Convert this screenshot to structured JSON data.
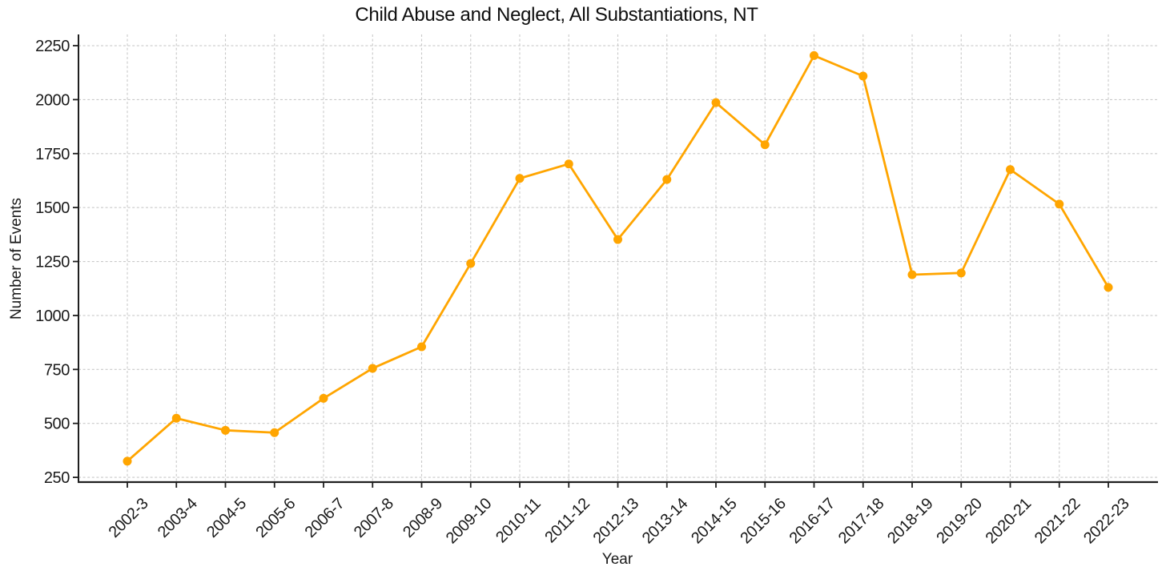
{
  "chart_data": {
    "type": "line",
    "title": "Child Abuse and Neglect, All Substantiations, NT",
    "xlabel": "Year",
    "ylabel": "Number of Events",
    "categories": [
      "2002-3",
      "2003-4",
      "2004-5",
      "2005-6",
      "2006-7",
      "2007-8",
      "2008-9",
      "2009-10",
      "2010-11",
      "2011-12",
      "2012-13",
      "2013-14",
      "2014-15",
      "2015-16",
      "2016-17",
      "2017-18",
      "2018-19",
      "2019-20",
      "2020-21",
      "2021-22",
      "2022-23"
    ],
    "values": [
      325,
      524,
      468,
      457,
      616,
      755,
      855,
      1241,
      1635,
      1702,
      1352,
      1630,
      1986,
      1791,
      2204,
      2109,
      1189,
      1197,
      1676,
      1516,
      1130
    ],
    "yticks": [
      250,
      500,
      750,
      1000,
      1250,
      1500,
      1750,
      2000,
      2250
    ],
    "ylim": [
      228,
      2302
    ],
    "line_color": "#FFA500",
    "marker": "circle",
    "grid": "dashed",
    "legend": "none"
  }
}
